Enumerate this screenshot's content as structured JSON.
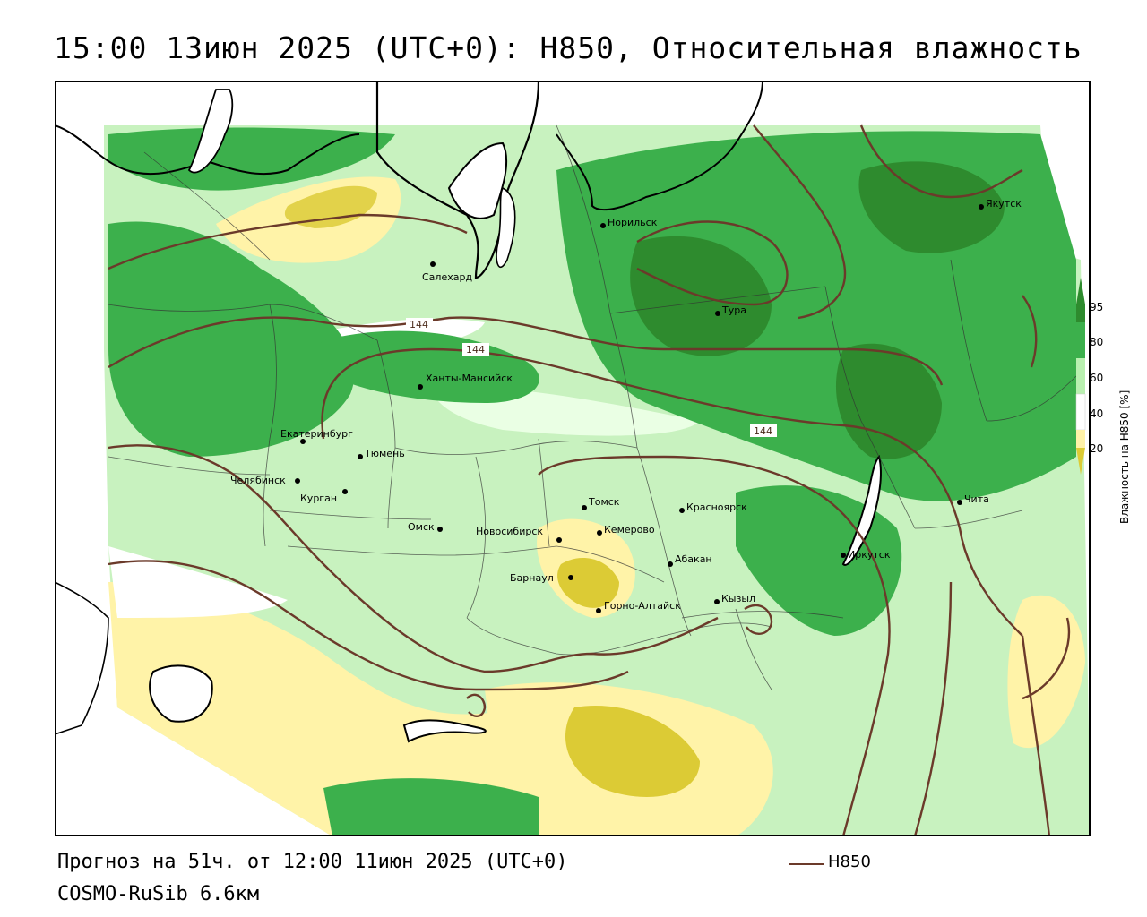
{
  "title": "15:00 13июн 2025 (UTC+0): H850, Относительная влажность",
  "footer": {
    "forecast": "Прогноз на 51ч. от 12:00 11июн 2025 (UTC+0)",
    "model": "COSMO-RuSib 6.6км",
    "contour_legend": "H850"
  },
  "legend": {
    "label": "Влажность на H850 [%]",
    "ticks": [
      "95",
      "80",
      "60",
      "40",
      "20"
    ],
    "colors": {
      "95": "#2e8b2e",
      "80": "#3cb04c",
      "60": "#b9f0b0",
      "40": "#ffffff",
      "20": "#fff2a8",
      "lt20": "#dccb35"
    }
  },
  "contours": [
    {
      "label": "144"
    },
    {
      "label": "144"
    },
    {
      "label": "144"
    }
  ],
  "cities": [
    {
      "name": "Салехард"
    },
    {
      "name": "Норильск"
    },
    {
      "name": "Якутск"
    },
    {
      "name": "Тура"
    },
    {
      "name": "Ханты-Мансийск"
    },
    {
      "name": "Екатеринбург"
    },
    {
      "name": "Тюмень"
    },
    {
      "name": "Челябинск"
    },
    {
      "name": "Курган"
    },
    {
      "name": "Омск"
    },
    {
      "name": "Томск"
    },
    {
      "name": "Красноярск"
    },
    {
      "name": "Новосибирск"
    },
    {
      "name": "Кемерово"
    },
    {
      "name": "Абакан"
    },
    {
      "name": "Барнаул"
    },
    {
      "name": "Горно-Алтайск"
    },
    {
      "name": "Кызыл"
    },
    {
      "name": "Иркутск"
    },
    {
      "name": "Чита"
    }
  ],
  "colors": {
    "contour": "#6b3a2a",
    "coast": "#000000",
    "border": "#333333"
  }
}
